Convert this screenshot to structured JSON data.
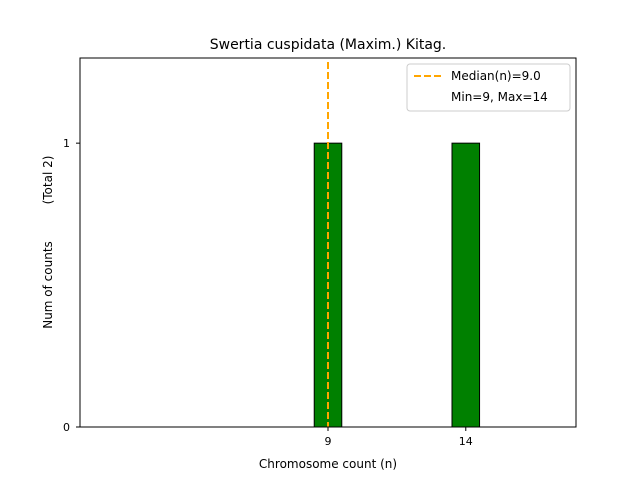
{
  "chart_data": {
    "type": "bar",
    "title": "Swertia cuspidata (Maxim.) Kitag.",
    "xlabel": "Chromosome count (n)",
    "ylabel": "Num of counts",
    "ylabel_total": "(Total 2)",
    "x": [
      9,
      14
    ],
    "values": [
      1,
      1
    ],
    "x_ticks": [
      9,
      14
    ],
    "y_ticks": [
      0,
      1
    ],
    "xlim": [
      0,
      18
    ],
    "ylim": [
      0,
      1.3
    ],
    "bar_width": 1,
    "bar_color": "#008000",
    "median": 9.0,
    "median_color": "#ffa500",
    "legend": {
      "location": "top-right",
      "entries": [
        "Median(n)=9.0",
        "Min=9, Max=14"
      ]
    },
    "grid": false
  }
}
